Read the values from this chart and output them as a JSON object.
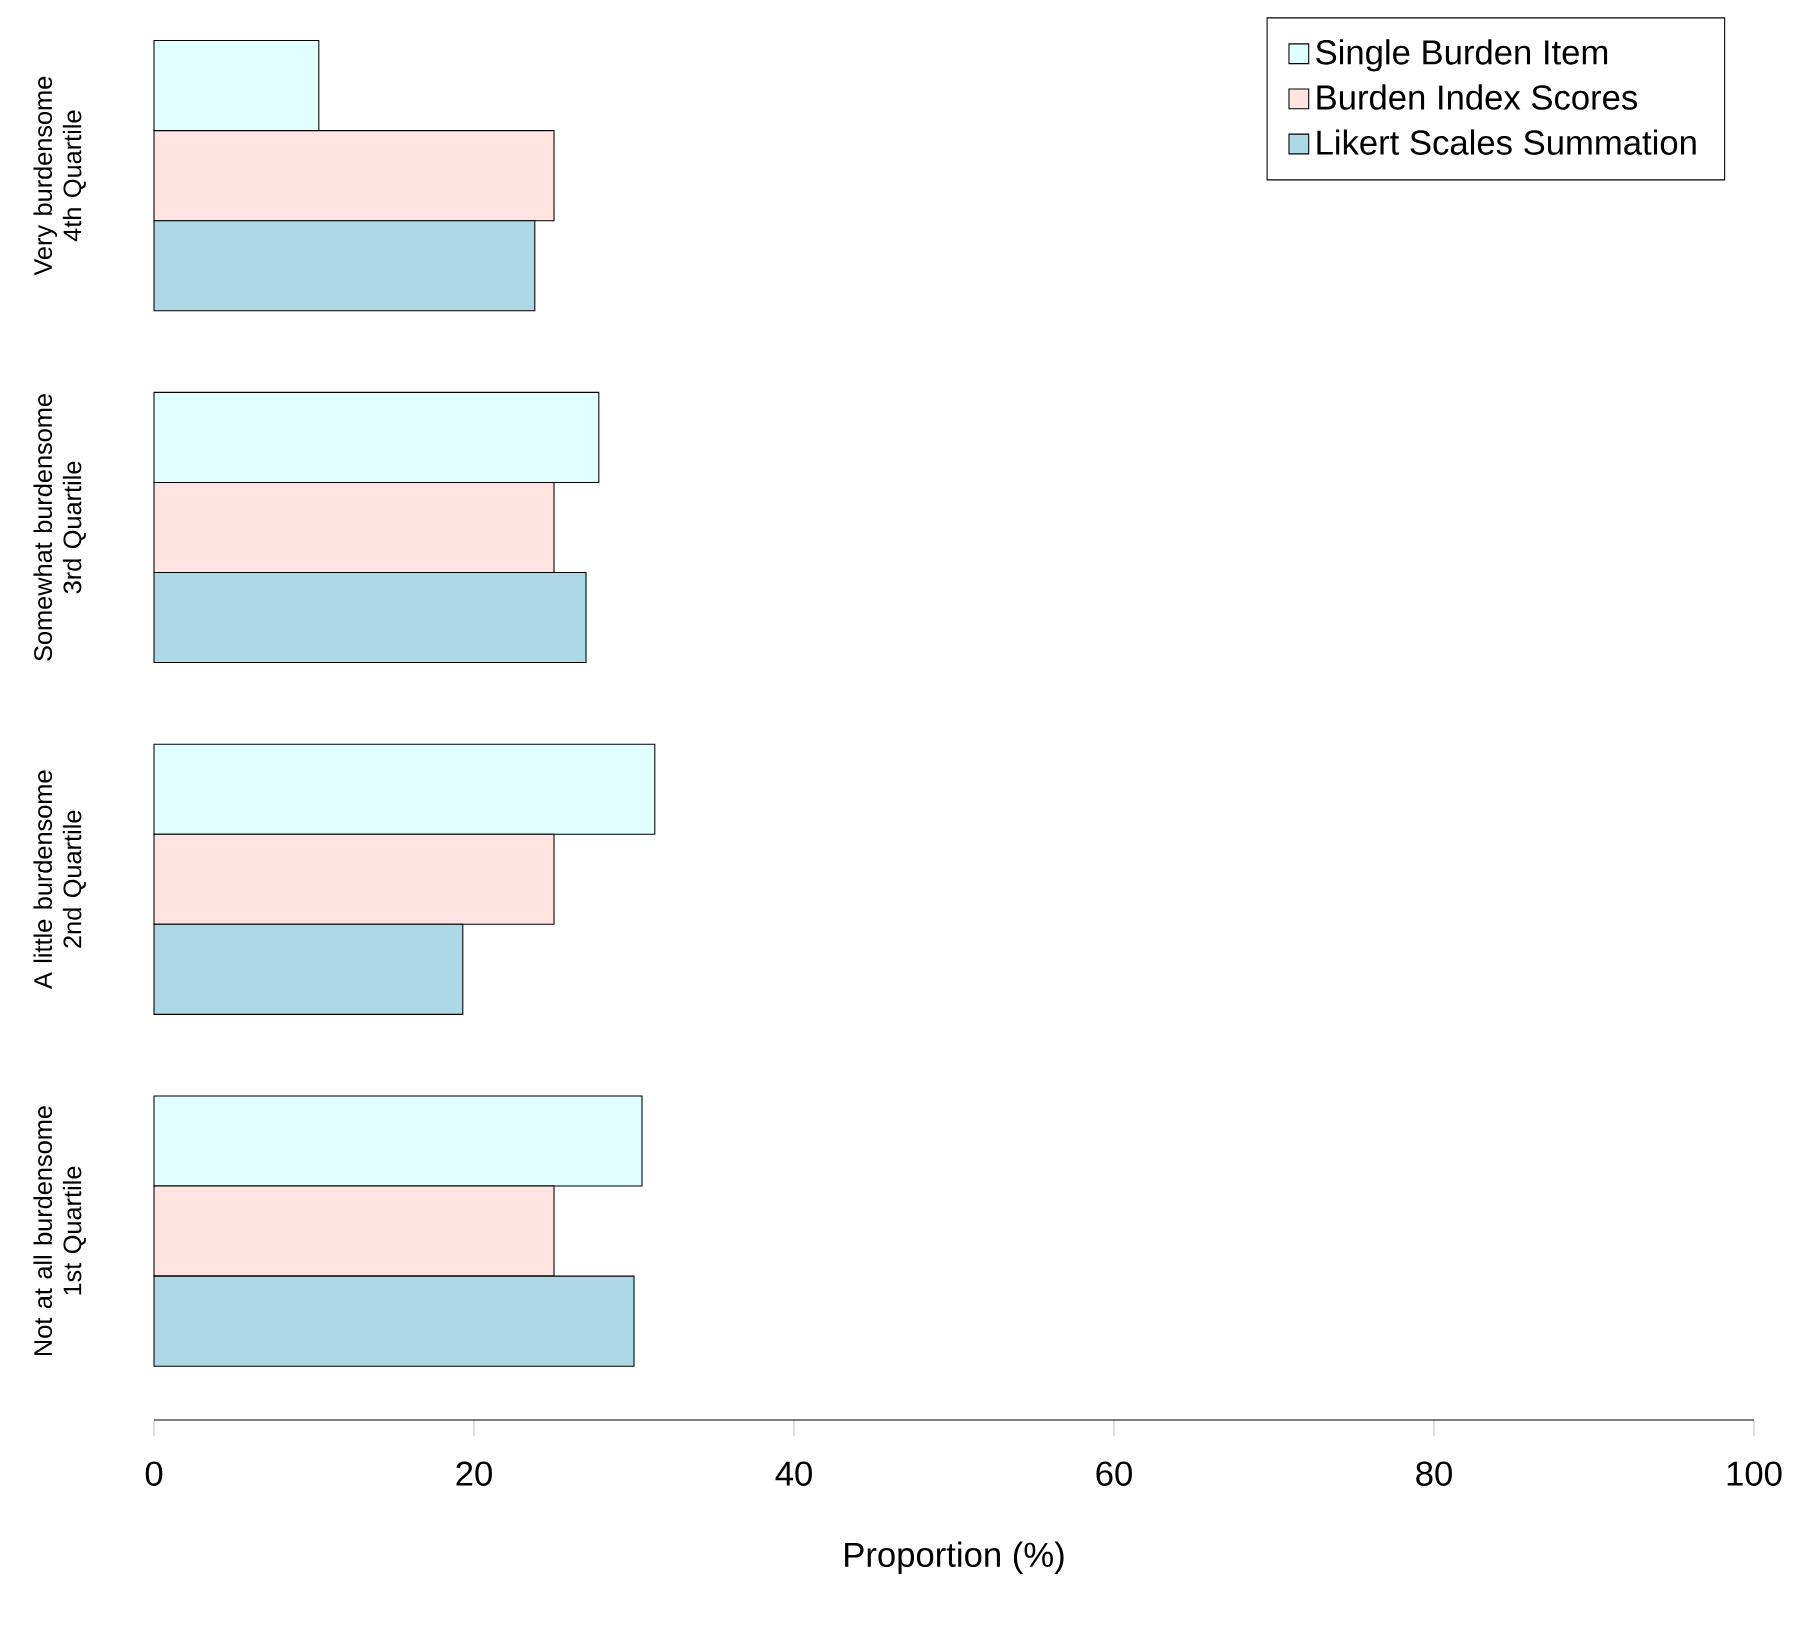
{
  "chart_data": {
    "type": "bar",
    "orientation": "horizontal",
    "xlabel": "Proportion (%)",
    "categories": [
      "Very burdensome 4th Quartile",
      "Somewhat burdensome 3rd Quartile",
      "A little burdensome 2nd Quartile",
      "Not at all burdensome 1st Quartile"
    ],
    "series": [
      {
        "name": "Single Burden Item",
        "color": "#e0ffff",
        "values": [
          10.3,
          27.8,
          31.3,
          30.5
        ]
      },
      {
        "name": "Burden Index Scores",
        "color": "#ffe4e1",
        "values": [
          25,
          25,
          25,
          25
        ]
      },
      {
        "name": "Likert Scales Summation",
        "color": "#add8e6",
        "values": [
          23.8,
          27,
          19.3,
          30
        ]
      }
    ],
    "xlim": [
      0,
      100
    ],
    "xticks": [
      0,
      20,
      40,
      60,
      80,
      100
    ],
    "grid": false,
    "legend": "top right"
  }
}
